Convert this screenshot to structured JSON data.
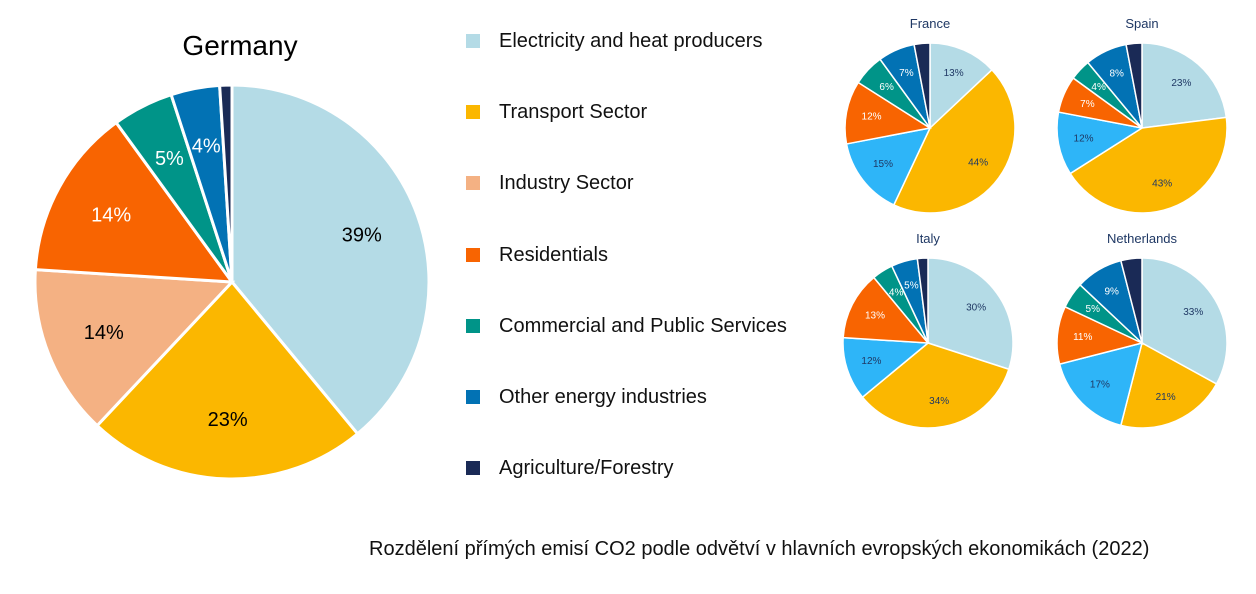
{
  "caption": "Rozdělení přímých emisí CO2 podle odvětví v hlavních evropských ekonomikách (2022)",
  "legend": [
    {
      "label": "Electricity and heat producers",
      "color": "#b4dbe6"
    },
    {
      "label": "Transport Sector",
      "color": "#fbb700"
    },
    {
      "label": "Industry Sector",
      "color": "#f4b183"
    },
    {
      "label": "Residentials",
      "color": "#f86401"
    },
    {
      "label": "Commercial and Public Services",
      "color": "#009488"
    },
    {
      "label": "Other energy industries",
      "color": "#0272b4"
    },
    {
      "label": "Agriculture/Forestry",
      "color": "#1a2a56"
    }
  ],
  "chart_data": [
    {
      "type": "pie",
      "title": "Germany",
      "slices": [
        {
          "category": "Electricity and heat producers",
          "value": 39,
          "label": "39%",
          "color": "#b4dbe6"
        },
        {
          "category": "Transport Sector",
          "value": 23,
          "label": "23%",
          "color": "#fbb700"
        },
        {
          "category": "Industry Sector",
          "value": 14,
          "label": "14%",
          "color": "#f4b183"
        },
        {
          "category": "Residentials",
          "value": 14,
          "label": "14%",
          "color": "#f86401"
        },
        {
          "category": "Commercial and Public Services",
          "value": 5,
          "label": "5%",
          "color": "#009488"
        },
        {
          "category": "Other energy industries",
          "value": 4,
          "label": "4%",
          "color": "#0272b4"
        },
        {
          "category": "Agriculture/Forestry",
          "value": 1,
          "label": "",
          "color": "#1a2a56"
        }
      ]
    },
    {
      "type": "pie",
      "title": "France",
      "slices": [
        {
          "category": "Electricity and heat producers",
          "value": 13,
          "label": "13%",
          "color": "#b4dbe6"
        },
        {
          "category": "Transport Sector",
          "value": 44,
          "label": "44%",
          "color": "#fbb700"
        },
        {
          "category": "Industry Sector",
          "value": 15,
          "label": "15%",
          "color": "#2eb5f8"
        },
        {
          "category": "Residentials",
          "value": 12,
          "label": "12%",
          "color": "#f86401"
        },
        {
          "category": "Commercial and Public Services",
          "value": 6,
          "label": "6%",
          "color": "#009488"
        },
        {
          "category": "Other energy industries",
          "value": 7,
          "label": "7%",
          "color": "#0272b4"
        },
        {
          "category": "Agriculture/Forestry",
          "value": 3,
          "label": "",
          "color": "#1a2a56"
        }
      ]
    },
    {
      "type": "pie",
      "title": "Spain",
      "slices": [
        {
          "category": "Electricity and heat producers",
          "value": 23,
          "label": "23%",
          "color": "#b4dbe6"
        },
        {
          "category": "Transport Sector",
          "value": 43,
          "label": "43%",
          "color": "#fbb700"
        },
        {
          "category": "Industry Sector",
          "value": 12,
          "label": "12%",
          "color": "#2eb5f8"
        },
        {
          "category": "Residentials",
          "value": 7,
          "label": "7%",
          "color": "#f86401"
        },
        {
          "category": "Commercial and Public Services",
          "value": 4,
          "label": "4%",
          "color": "#009488"
        },
        {
          "category": "Other energy industries",
          "value": 8,
          "label": "8%",
          "color": "#0272b4"
        },
        {
          "category": "Agriculture/Forestry",
          "value": 3,
          "label": "",
          "color": "#1a2a56"
        }
      ]
    },
    {
      "type": "pie",
      "title": "Italy",
      "slices": [
        {
          "category": "Electricity and heat producers",
          "value": 30,
          "label": "30%",
          "color": "#b4dbe6"
        },
        {
          "category": "Transport Sector",
          "value": 34,
          "label": "34%",
          "color": "#fbb700"
        },
        {
          "category": "Industry Sector",
          "value": 12,
          "label": "12%",
          "color": "#2eb5f8"
        },
        {
          "category": "Residentials",
          "value": 13,
          "label": "13%",
          "color": "#f86401"
        },
        {
          "category": "Commercial and Public Services",
          "value": 4,
          "label": "4%",
          "color": "#009488"
        },
        {
          "category": "Other energy industries",
          "value": 5,
          "label": "5%",
          "color": "#0272b4"
        },
        {
          "category": "Agriculture/Forestry",
          "value": 2,
          "label": "",
          "color": "#1a2a56"
        }
      ]
    },
    {
      "type": "pie",
      "title": "Netherlands",
      "slices": [
        {
          "category": "Electricity and heat producers",
          "value": 33,
          "label": "33%",
          "color": "#b4dbe6"
        },
        {
          "category": "Transport Sector",
          "value": 21,
          "label": "21%",
          "color": "#fbb700"
        },
        {
          "category": "Industry Sector",
          "value": 17,
          "label": "17%",
          "color": "#2eb5f8"
        },
        {
          "category": "Residentials",
          "value": 11,
          "label": "11%",
          "color": "#f86401"
        },
        {
          "category": "Commercial and Public Services",
          "value": 5,
          "label": "5%",
          "color": "#009488"
        },
        {
          "category": "Other energy industries",
          "value": 9,
          "label": "9%",
          "color": "#0272b4"
        },
        {
          "category": "Agriculture/Forestry",
          "value": 4,
          "label": "",
          "color": "#1a2a56"
        }
      ]
    }
  ]
}
